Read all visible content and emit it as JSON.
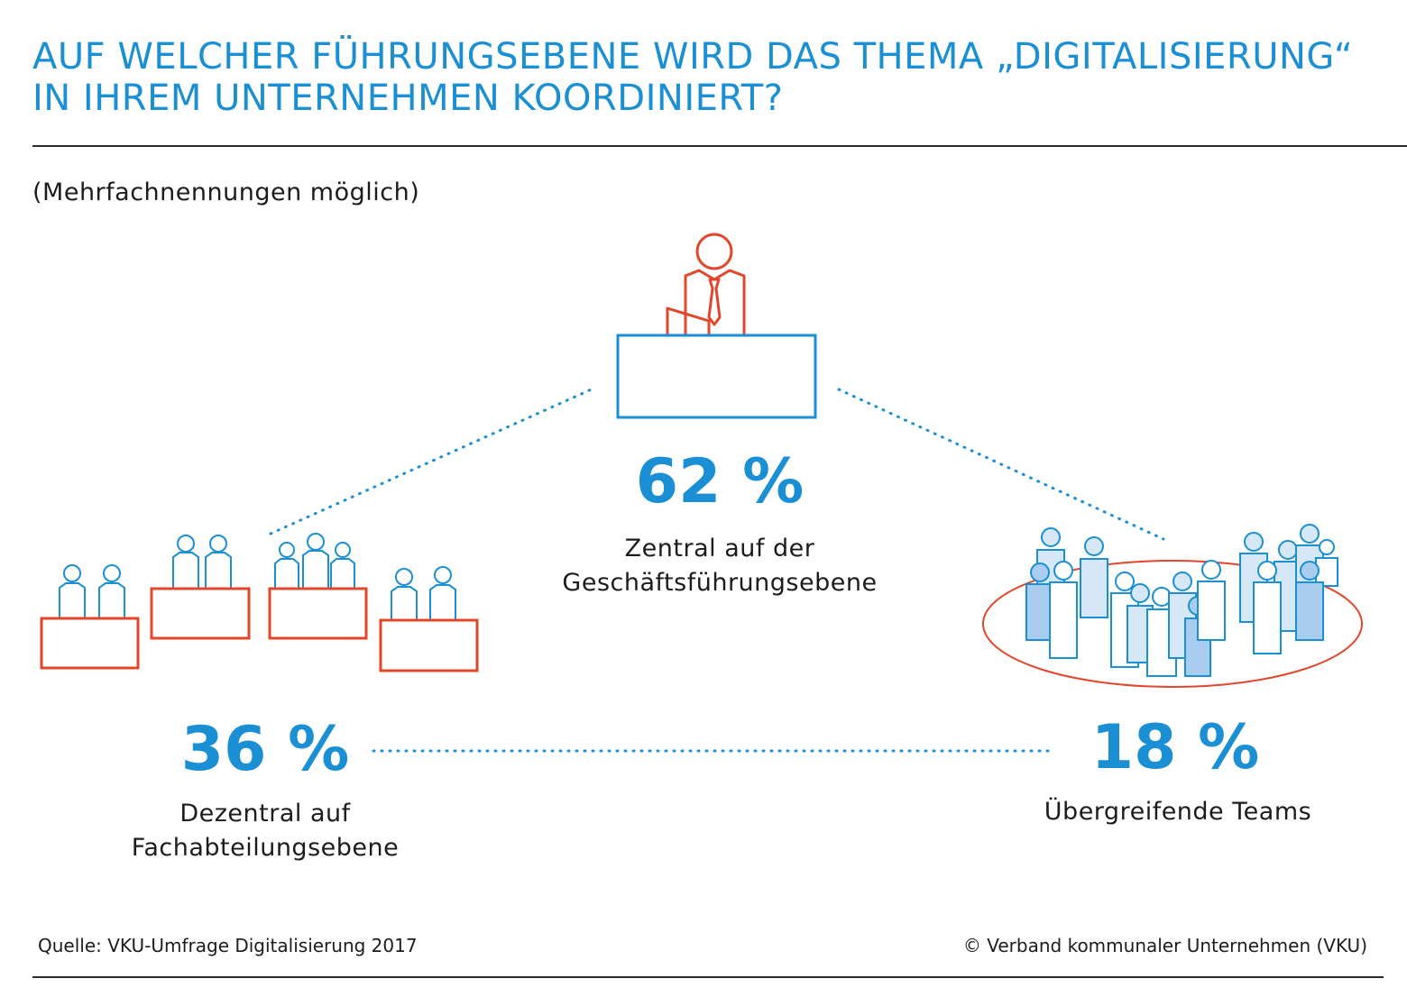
{
  "title": {
    "line1": "AUF WELCHER FÜHRUNGSEBENE WIRD DAS THEMA „DIGITALISIERUNG“",
    "line2": "IN IHREM UNTERNEHMEN KOORDINIERT?"
  },
  "subtitle": "(Mehrfachnennungen möglich)",
  "items": [
    {
      "id": "zentral",
      "percent_label": "62 %",
      "value": 62,
      "label_lines": [
        "Zentral auf der",
        "Geschäftsführungsebene"
      ]
    },
    {
      "id": "dezentral",
      "percent_label": "36 %",
      "value": 36,
      "label_lines": [
        "Dezentral auf",
        "Fachabteilungsebene"
      ]
    },
    {
      "id": "teams",
      "percent_label": "18 %",
      "value": 18,
      "label_lines": [
        "Übergreifende Teams"
      ]
    }
  ],
  "footer": {
    "source": "Quelle: VKU-Umfrage Digitalisierung 2017",
    "copyright": "© Verband kommunaler Unternehmen (VKU)"
  },
  "colors": {
    "accent_blue": "#1a8fd4",
    "accent_red": "#e2462b",
    "text": "#1c1c1c",
    "light_blue_fill": "#d6e8f7",
    "mid_blue_fill": "#a9cdee"
  }
}
